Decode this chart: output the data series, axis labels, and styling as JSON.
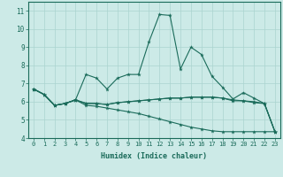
{
  "xlabel": "Humidex (Indice chaleur)",
  "ylabel": "",
  "bg_color": "#cceae7",
  "grid_color": "#aad4d0",
  "line_color": "#1a6b5a",
  "xlim": [
    -0.5,
    23.5
  ],
  "ylim": [
    4,
    11.5
  ],
  "yticks": [
    4,
    5,
    6,
    7,
    8,
    9,
    10,
    11
  ],
  "xticks": [
    0,
    1,
    2,
    3,
    4,
    5,
    6,
    7,
    8,
    9,
    10,
    11,
    12,
    13,
    14,
    15,
    16,
    17,
    18,
    19,
    20,
    21,
    22,
    23
  ],
  "lines": [
    {
      "x": [
        0,
        1,
        2,
        3,
        4,
        5,
        6,
        7,
        8,
        9,
        10,
        11,
        12,
        13,
        14,
        15,
        16,
        17,
        18,
        19,
        20,
        21,
        22,
        23
      ],
      "y": [
        6.7,
        6.4,
        5.8,
        5.9,
        6.1,
        7.5,
        7.3,
        6.7,
        7.3,
        7.5,
        7.5,
        9.3,
        10.8,
        10.75,
        7.8,
        9.0,
        8.6,
        7.4,
        6.8,
        6.15,
        6.5,
        6.2,
        5.9,
        4.35
      ]
    },
    {
      "x": [
        0,
        1,
        2,
        3,
        4,
        5,
        6,
        7,
        8,
        9,
        10,
        11,
        12,
        13,
        14,
        15,
        16,
        17,
        18,
        19,
        20,
        21,
        22,
        23
      ],
      "y": [
        6.7,
        6.4,
        5.8,
        5.9,
        6.1,
        5.9,
        5.9,
        5.85,
        5.95,
        6.0,
        6.05,
        6.1,
        6.15,
        6.2,
        6.2,
        6.25,
        6.25,
        6.25,
        6.2,
        6.1,
        6.05,
        6.0,
        5.9,
        4.35
      ]
    },
    {
      "x": [
        0,
        1,
        2,
        3,
        4,
        5,
        6,
        7,
        8,
        9,
        10,
        11,
        12,
        13,
        14,
        15,
        16,
        17,
        18,
        19,
        20,
        21,
        22,
        23
      ],
      "y": [
        6.7,
        6.4,
        5.8,
        5.9,
        6.1,
        5.8,
        5.75,
        5.65,
        5.55,
        5.45,
        5.35,
        5.2,
        5.05,
        4.9,
        4.75,
        4.6,
        4.5,
        4.4,
        4.35,
        4.35,
        4.35,
        4.35,
        4.35,
        4.35
      ]
    },
    {
      "x": [
        0,
        1,
        2,
        3,
        4,
        5,
        6,
        7,
        8,
        9,
        10,
        11,
        12,
        13,
        14,
        15,
        16,
        17,
        18,
        19,
        20,
        21,
        22,
        23
      ],
      "y": [
        6.7,
        6.4,
        5.8,
        5.9,
        6.1,
        5.92,
        5.9,
        5.85,
        5.95,
        6.0,
        6.05,
        6.1,
        6.15,
        6.2,
        6.2,
        6.25,
        6.25,
        6.25,
        6.2,
        6.05,
        6.05,
        5.95,
        5.9,
        4.35
      ]
    }
  ]
}
